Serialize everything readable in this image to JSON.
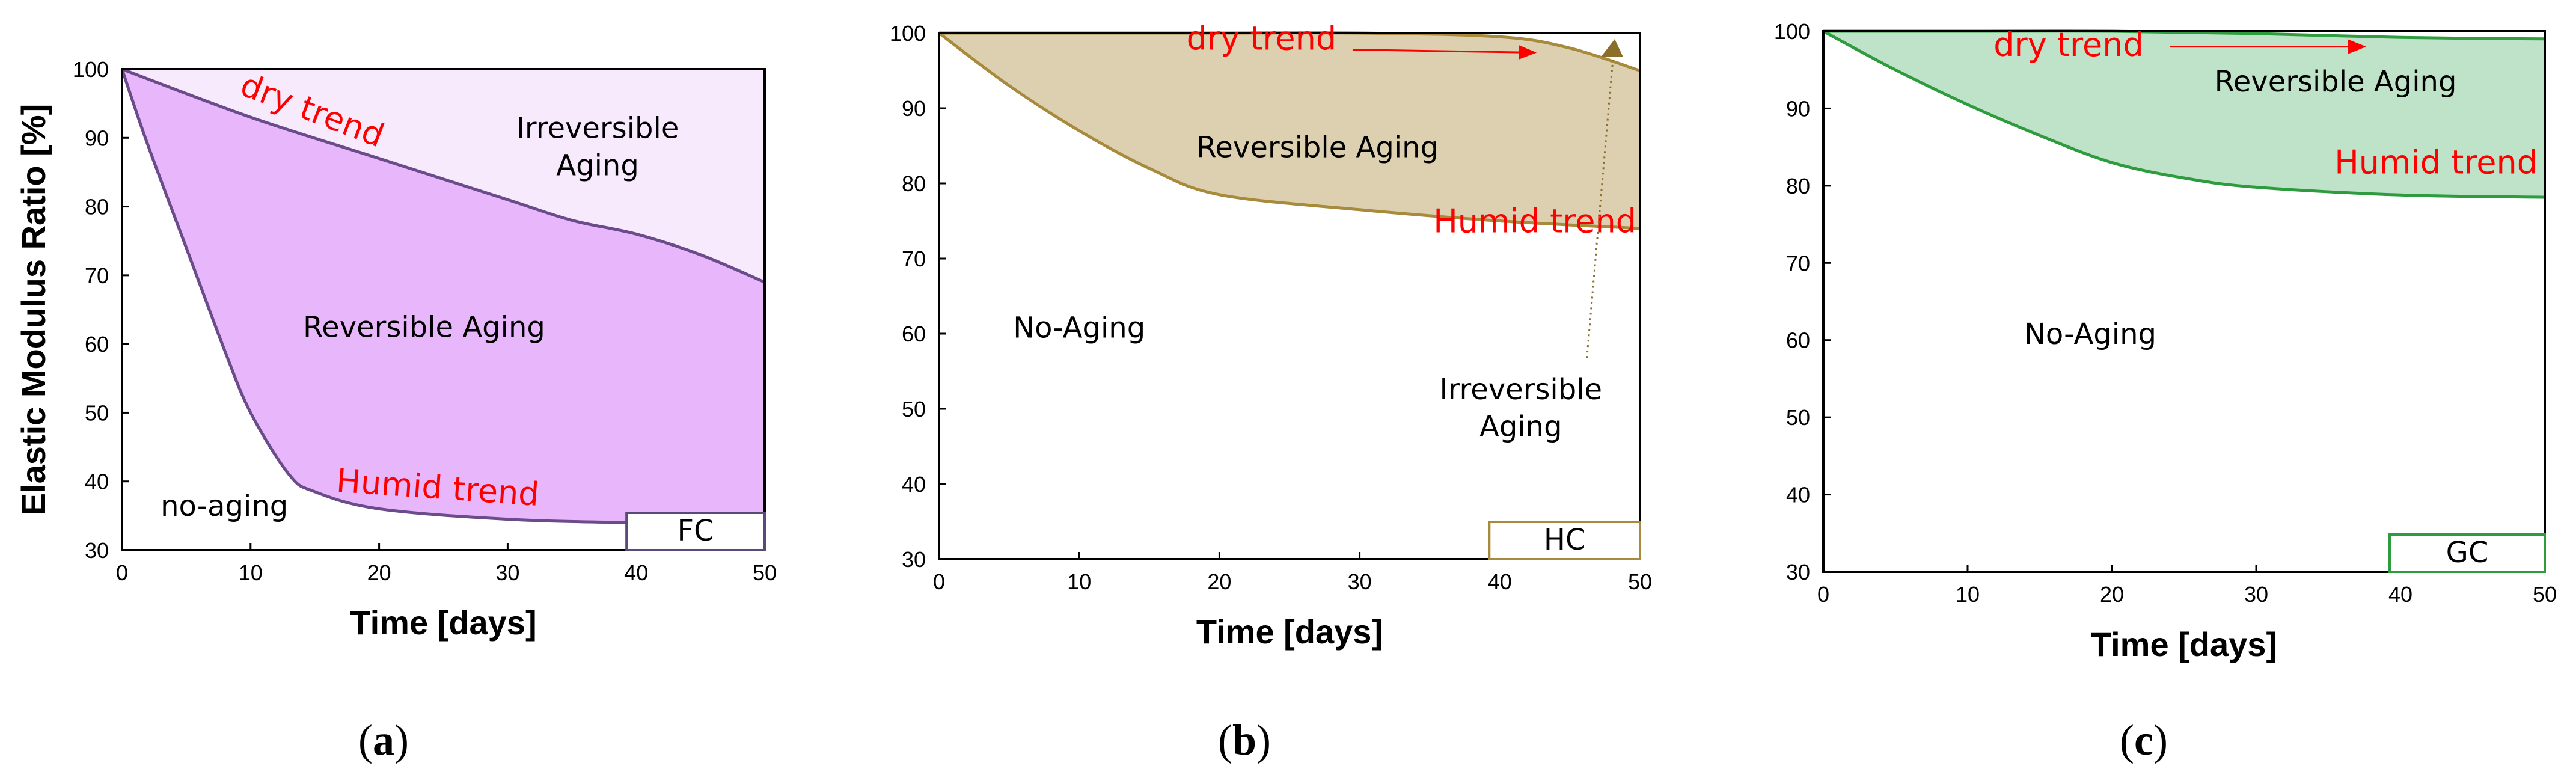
{
  "chart_data": [
    {
      "type": "area",
      "panel_label": "(a)",
      "panel_letter": "a",
      "box_label": "FC",
      "xlabel": "Time [days]",
      "ylabel": "Elastic Modulus Ratio [%]",
      "xlim": [
        0,
        50
      ],
      "ylim": [
        30,
        100
      ],
      "xticks": [
        0,
        10,
        20,
        30,
        40,
        50
      ],
      "yticks": [
        30,
        40,
        50,
        60,
        70,
        80,
        90,
        100
      ],
      "series": [
        {
          "name": "dry trend",
          "x": [
            0,
            10,
            20,
            30,
            35,
            40,
            45,
            50
          ],
          "y": [
            100,
            93,
            87,
            81,
            78,
            76,
            73,
            69
          ]
        },
        {
          "name": "Humid trend",
          "x": [
            0,
            2,
            5,
            8,
            10,
            13,
            15,
            20,
            30,
            40,
            50
          ],
          "y": [
            100,
            89,
            74,
            59,
            50,
            41,
            38.5,
            36,
            34.5,
            34,
            34
          ]
        }
      ],
      "regions": [
        "Irreversible Aging",
        "Reversible Aging",
        "no-aging"
      ],
      "colors": {
        "line": "#6b4c8a",
        "reversible": "#e8b6fb",
        "irreversible": "#f7eafd",
        "box": "#5a4a7a"
      }
    },
    {
      "type": "area",
      "panel_label": "(b)",
      "panel_letter": "b",
      "box_label": "HC",
      "xlabel": "Time [days]",
      "ylabel": "",
      "xlim": [
        0,
        50
      ],
      "ylim": [
        30,
        100
      ],
      "xticks": [
        0,
        10,
        20,
        30,
        40,
        50
      ],
      "yticks": [
        30,
        40,
        50,
        60,
        70,
        80,
        90,
        100
      ],
      "series": [
        {
          "name": "dry trend",
          "x": [
            0,
            10,
            20,
            30,
            40,
            45,
            50
          ],
          "y": [
            100,
            100,
            100,
            100,
            99.5,
            98,
            95
          ]
        },
        {
          "name": "Humid trend",
          "x": [
            0,
            5,
            10,
            15,
            20,
            30,
            40,
            50
          ],
          "y": [
            100,
            93,
            87,
            82,
            78.5,
            76.5,
            75,
            74
          ]
        }
      ],
      "regions": [
        "Reversible Aging",
        "No-Aging",
        "Irreversible Aging"
      ],
      "colors": {
        "line": "#a88a3c",
        "reversible": "#dcd0b0",
        "box": "#a88a3c",
        "marker": "#8b6e2a"
      }
    },
    {
      "type": "area",
      "panel_label": "(c)",
      "panel_letter": "c",
      "box_label": "GC",
      "xlabel": "Time [days]",
      "ylabel": "",
      "xlim": [
        0,
        50
      ],
      "ylim": [
        30,
        100
      ],
      "xticks": [
        0,
        10,
        20,
        30,
        40,
        50
      ],
      "yticks": [
        30,
        40,
        50,
        60,
        70,
        80,
        90,
        100
      ],
      "series": [
        {
          "name": "dry trend",
          "x": [
            0,
            10,
            20,
            30,
            40,
            50
          ],
          "y": [
            100,
            100,
            100,
            99.7,
            99.2,
            99
          ]
        },
        {
          "name": "Humid trend",
          "x": [
            0,
            5,
            10,
            15,
            20,
            25,
            30,
            40,
            50
          ],
          "y": [
            100,
            95,
            90.5,
            86.5,
            83,
            81,
            79.8,
            78.8,
            78.5
          ]
        }
      ],
      "regions": [
        "Reversible Aging",
        "No-Aging"
      ],
      "colors": {
        "line": "#2e9c3e",
        "reversible": "#bfe3c8",
        "box": "#2e9c3e"
      }
    }
  ]
}
